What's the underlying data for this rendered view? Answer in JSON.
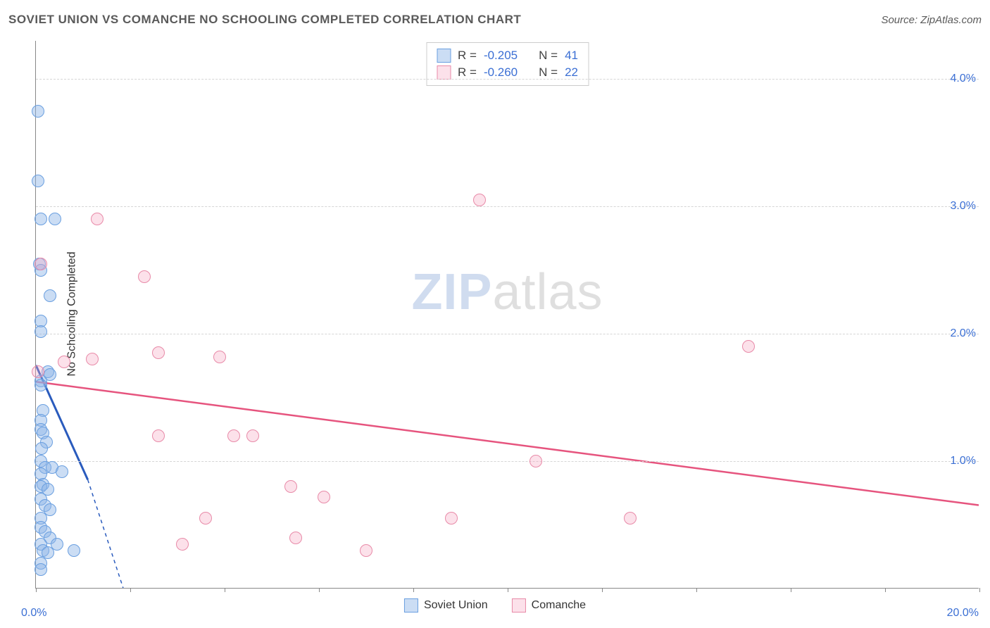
{
  "title": "SOVIET UNION VS COMANCHE NO SCHOOLING COMPLETED CORRELATION CHART",
  "source_label": "Source: ZipAtlas.com",
  "y_axis_title": "No Schooling Completed",
  "watermark": {
    "zip": "ZIP",
    "atlas": "atlas"
  },
  "chart": {
    "type": "scatter",
    "xlim": [
      0,
      20
    ],
    "ylim": [
      0,
      4.3
    ],
    "x_min_label": "0.0%",
    "x_max_label": "20.0%",
    "y_grid": [
      {
        "value": 1.0,
        "label": "1.0%"
      },
      {
        "value": 2.0,
        "label": "2.0%"
      },
      {
        "value": 3.0,
        "label": "3.0%"
      },
      {
        "value": 4.0,
        "label": "4.0%"
      }
    ],
    "x_ticks": [
      0,
      2,
      4,
      6,
      8,
      10,
      12,
      14,
      16,
      18,
      20
    ],
    "background_color": "#ffffff",
    "grid_color": "#d5d5d5",
    "axis_color": "#888888",
    "label_color": "#3b6fd4",
    "point_radius": 9,
    "point_border_width": 1.5,
    "series": [
      {
        "name": "Soviet Union",
        "fill": "rgba(140,180,230,0.45)",
        "stroke": "#6a9fe0",
        "trend": {
          "x1": 0,
          "y1": 1.75,
          "x2": 1.1,
          "y2": 0.85,
          "x2_dash_ext": 1.85,
          "y2_dash_ext": 0.0,
          "stroke": "#2a5bbd",
          "width": 3
        },
        "points": [
          [
            0.05,
            3.75
          ],
          [
            0.05,
            3.2
          ],
          [
            0.1,
            2.9
          ],
          [
            0.4,
            2.9
          ],
          [
            0.07,
            2.55
          ],
          [
            0.1,
            2.5
          ],
          [
            0.3,
            2.3
          ],
          [
            0.1,
            2.1
          ],
          [
            0.1,
            2.02
          ],
          [
            0.25,
            1.7
          ],
          [
            0.3,
            1.68
          ],
          [
            0.1,
            1.63
          ],
          [
            0.1,
            1.6
          ],
          [
            0.15,
            1.4
          ],
          [
            0.1,
            1.32
          ],
          [
            0.1,
            1.25
          ],
          [
            0.15,
            1.22
          ],
          [
            0.22,
            1.15
          ],
          [
            0.12,
            1.1
          ],
          [
            0.1,
            1.0
          ],
          [
            0.2,
            0.95
          ],
          [
            0.35,
            0.95
          ],
          [
            0.1,
            0.9
          ],
          [
            0.55,
            0.92
          ],
          [
            0.15,
            0.82
          ],
          [
            0.1,
            0.8
          ],
          [
            0.25,
            0.78
          ],
          [
            0.1,
            0.7
          ],
          [
            0.2,
            0.65
          ],
          [
            0.3,
            0.62
          ],
          [
            0.1,
            0.55
          ],
          [
            0.1,
            0.48
          ],
          [
            0.2,
            0.45
          ],
          [
            0.3,
            0.4
          ],
          [
            0.1,
            0.35
          ],
          [
            0.15,
            0.3
          ],
          [
            0.25,
            0.28
          ],
          [
            0.45,
            0.35
          ],
          [
            0.8,
            0.3
          ],
          [
            0.1,
            0.2
          ],
          [
            0.1,
            0.15
          ]
        ]
      },
      {
        "name": "Comanche",
        "fill": "rgba(245,170,195,0.35)",
        "stroke": "#e88aa8",
        "trend": {
          "x1": 0,
          "y1": 1.62,
          "x2": 20,
          "y2": 0.65,
          "stroke": "#e6547e",
          "width": 2.5
        },
        "points": [
          [
            9.4,
            3.05
          ],
          [
            1.3,
            2.9
          ],
          [
            0.1,
            2.55
          ],
          [
            2.3,
            2.45
          ],
          [
            0.05,
            1.7
          ],
          [
            15.1,
            1.9
          ],
          [
            2.6,
            1.85
          ],
          [
            1.2,
            1.8
          ],
          [
            0.6,
            1.78
          ],
          [
            3.9,
            1.82
          ],
          [
            2.6,
            1.2
          ],
          [
            4.2,
            1.2
          ],
          [
            4.6,
            1.2
          ],
          [
            10.6,
            1.0
          ],
          [
            5.4,
            0.8
          ],
          [
            6.1,
            0.72
          ],
          [
            3.6,
            0.55
          ],
          [
            8.8,
            0.55
          ],
          [
            3.1,
            0.35
          ],
          [
            12.6,
            0.55
          ],
          [
            5.5,
            0.4
          ],
          [
            7.0,
            0.3
          ]
        ]
      }
    ],
    "stats_box": [
      {
        "swatch_fill": "rgba(140,180,230,0.45)",
        "swatch_stroke": "#6a9fe0",
        "r_label": "R =",
        "r_value": "-0.205",
        "n_label": "N =",
        "n_value": "41"
      },
      {
        "swatch_fill": "rgba(245,170,195,0.35)",
        "swatch_stroke": "#e88aa8",
        "r_label": "R =",
        "r_value": "-0.260",
        "n_label": "N =",
        "n_value": "22"
      }
    ],
    "bottom_legend": [
      {
        "swatch_fill": "rgba(140,180,230,0.45)",
        "swatch_stroke": "#6a9fe0",
        "label": "Soviet Union"
      },
      {
        "swatch_fill": "rgba(245,170,195,0.35)",
        "swatch_stroke": "#e88aa8",
        "label": "Comanche"
      }
    ]
  }
}
